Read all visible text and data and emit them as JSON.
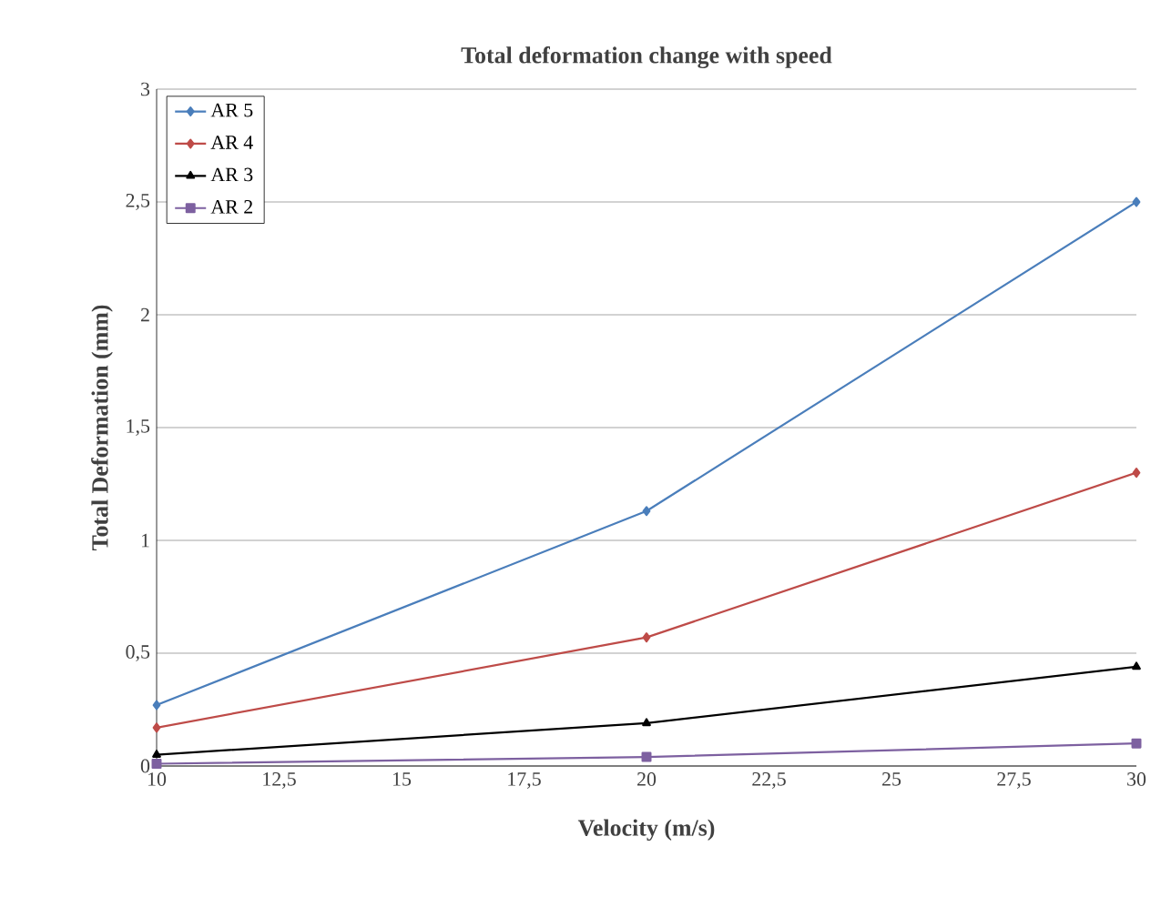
{
  "chart_data": {
    "type": "line",
    "title": "Total deformation change with speed",
    "xlabel": "Velocity (m/s)",
    "ylabel": "Total Deformation (mm)",
    "x": [
      10,
      20,
      30
    ],
    "series": [
      {
        "name": "AR 5",
        "color": "#4a7ebb",
        "marker": "diamond",
        "values": [
          0.27,
          1.13,
          2.5
        ]
      },
      {
        "name": "AR 4",
        "color": "#be4b48",
        "marker": "diamond",
        "values": [
          0.17,
          0.57,
          1.3
        ]
      },
      {
        "name": "AR 3",
        "color": "#000000",
        "marker": "triangle",
        "values": [
          0.05,
          0.19,
          0.44
        ]
      },
      {
        "name": "AR 2",
        "color": "#7d60a0",
        "marker": "square",
        "values": [
          0.01,
          0.04,
          0.1
        ]
      }
    ],
    "xlim": [
      10,
      30
    ],
    "xticks": [
      10,
      {
        "value": 12.5,
        "label": "12,5"
      },
      15,
      {
        "value": 17.5,
        "label": "17,5"
      },
      20,
      {
        "value": 22.5,
        "label": "22,5"
      },
      25,
      {
        "value": 27.5,
        "label": "27,5"
      },
      30
    ],
    "ylim": [
      0,
      3
    ],
    "yticks": [
      0,
      {
        "value": 0.5,
        "label": "0,5"
      },
      1,
      {
        "value": 1.5,
        "label": "1,5"
      },
      2,
      {
        "value": 2.5,
        "label": "2,5"
      },
      3
    ],
    "grid": "y",
    "legend": "top left",
    "line_style": "solid"
  }
}
